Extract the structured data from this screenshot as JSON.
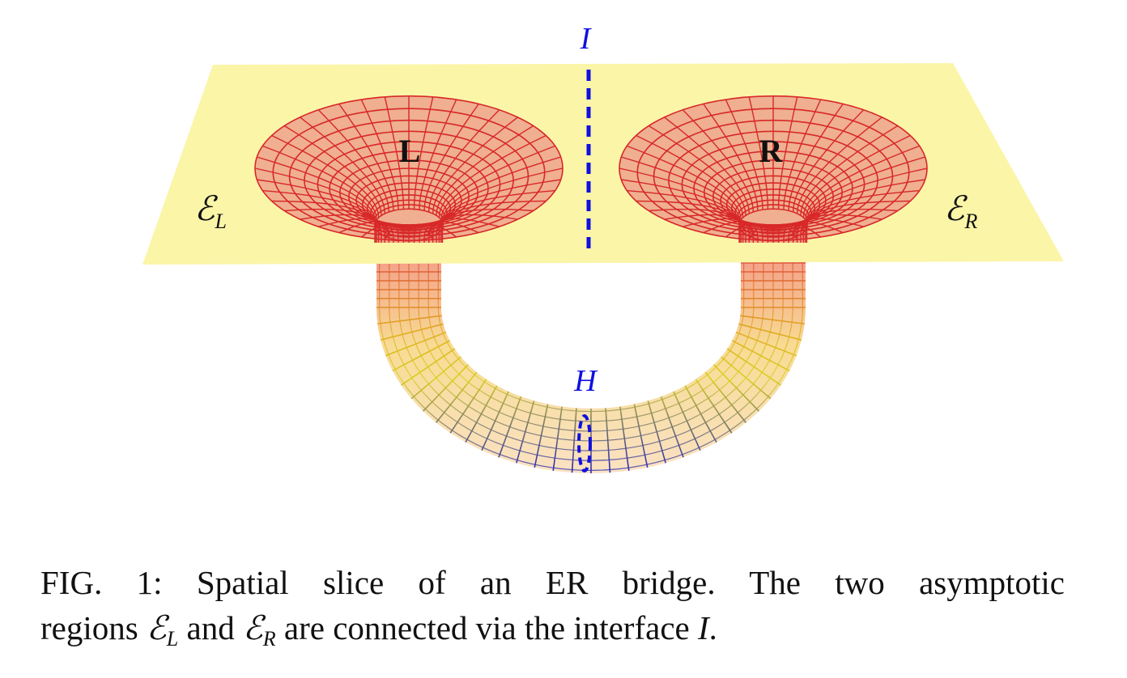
{
  "figure": {
    "labels": {
      "interface": "I",
      "horizon": "H",
      "left": "L",
      "right": "R",
      "region_left": {
        "symbol": "ℰ",
        "subscript": "L"
      },
      "region_right": {
        "symbol": "ℰ",
        "subscript": "R"
      }
    }
  },
  "caption": {
    "line1": "FIG. 1: Spatial slice of an ER bridge. The two asymptotic",
    "line2": [
      {
        "text": "regions "
      },
      {
        "math": "ℰ",
        "sub": "L"
      },
      {
        "text": " and "
      },
      {
        "math": "ℰ",
        "sub": "R"
      },
      {
        "text": " are connected via the interface "
      },
      {
        "math": "I"
      },
      {
        "text": "."
      }
    ]
  }
}
